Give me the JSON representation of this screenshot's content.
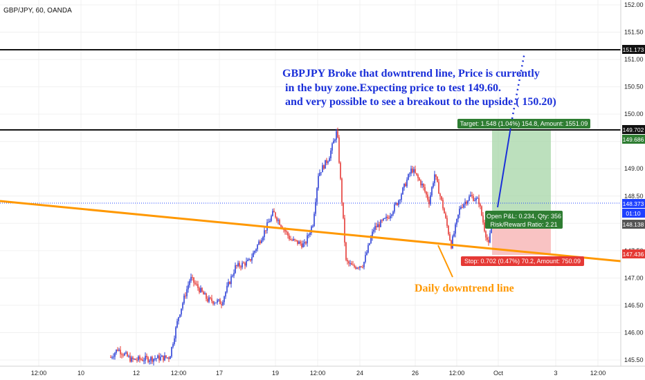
{
  "header": {
    "symbol": "GBP/JPY, 60, OANDA"
  },
  "colors": {
    "up": "#2b3fd6",
    "down": "#e53935",
    "trendline": "#ff9800",
    "annotation": "#1a2fd9",
    "target_zone": "#a5d6a7",
    "stop_zone": "#f8b4b4",
    "target_label": "#2e7d32",
    "stop_label": "#e53935",
    "current_line": "#1e40ff"
  },
  "annotations": {
    "main_text_line1": "GBPJPY Broke that downtrend line, Price is currently",
    "main_text_line2": " in the buy zone.Expecting price to test 149.60.",
    "main_text_line3": " and very possible to see a breakout to the upside ( 150.20)",
    "trendline_label": "Daily downtrend line"
  },
  "position": {
    "target_label": "Target: 1.548 (1.04%) 154.8, Amount: 1551.09",
    "stop_label": "Stop: 0.702 (0.47%) 70.2, Amount: 750.09",
    "open_pnl_label": "Open P&L: 0.234, Qty: 356",
    "risk_reward_label": "Risk/Reward Ratio: 2.21"
  },
  "price_tags": {
    "level_top": "151.173",
    "level_resistance": "149.702",
    "target": "149.686",
    "current": "148.373",
    "countdown": "01:10",
    "entry": "148.138",
    "stop": "147.436"
  },
  "chart_data": {
    "type": "line",
    "symbol": "GBP/JPY",
    "timeframe": "60",
    "broker": "OANDA",
    "ylim": [
      145.5,
      152.0
    ],
    "y_ticks": [
      "152.00",
      "151.50",
      "151.00",
      "150.50",
      "150.00",
      "149.50",
      "149.00",
      "148.50",
      "148.00",
      "147.50",
      "147.00",
      "146.50",
      "146.00",
      "145.50"
    ],
    "x_ticks": [
      "12:00",
      "10",
      "12",
      "12:00",
      "17",
      "19",
      "12:00",
      "24",
      "26",
      "12:00",
      "Oct",
      "3",
      "12:00"
    ],
    "horizontal_levels": [
      151.173,
      149.702
    ],
    "current_price": 148.373,
    "entry_price": 148.138,
    "target_price": 149.686,
    "stop_price": 147.436,
    "price_path": [
      {
        "x": "10 12:00",
        "y": 145.5
      },
      {
        "x": "12",
        "y": 145.6
      },
      {
        "x": "12 12:00",
        "y": 147.0
      },
      {
        "x": "17",
        "y": 146.6
      },
      {
        "x": "19",
        "y": 148.2
      },
      {
        "x": "19 12:00",
        "y": 147.6
      },
      {
        "x": "21",
        "y": 149.7
      },
      {
        "x": "22",
        "y": 148.6
      },
      {
        "x": "23",
        "y": 147.2
      },
      {
        "x": "24",
        "y": 147.3
      },
      {
        "x": "25",
        "y": 148.1
      },
      {
        "x": "26",
        "y": 149.0
      },
      {
        "x": "26 12:00",
        "y": 148.3
      },
      {
        "x": "27",
        "y": 148.9
      },
      {
        "x": "28",
        "y": 147.6
      },
      {
        "x": "29",
        "y": 148.5
      },
      {
        "x": "30",
        "y": 147.6
      },
      {
        "x": "30 12:00",
        "y": 148.14
      }
    ],
    "projection": [
      {
        "x": "30 12:00",
        "y": 148.14
      },
      {
        "x": "Oct",
        "y": 149.6
      },
      {
        "x": "Oct 12:00",
        "y": 150.9
      }
    ]
  }
}
